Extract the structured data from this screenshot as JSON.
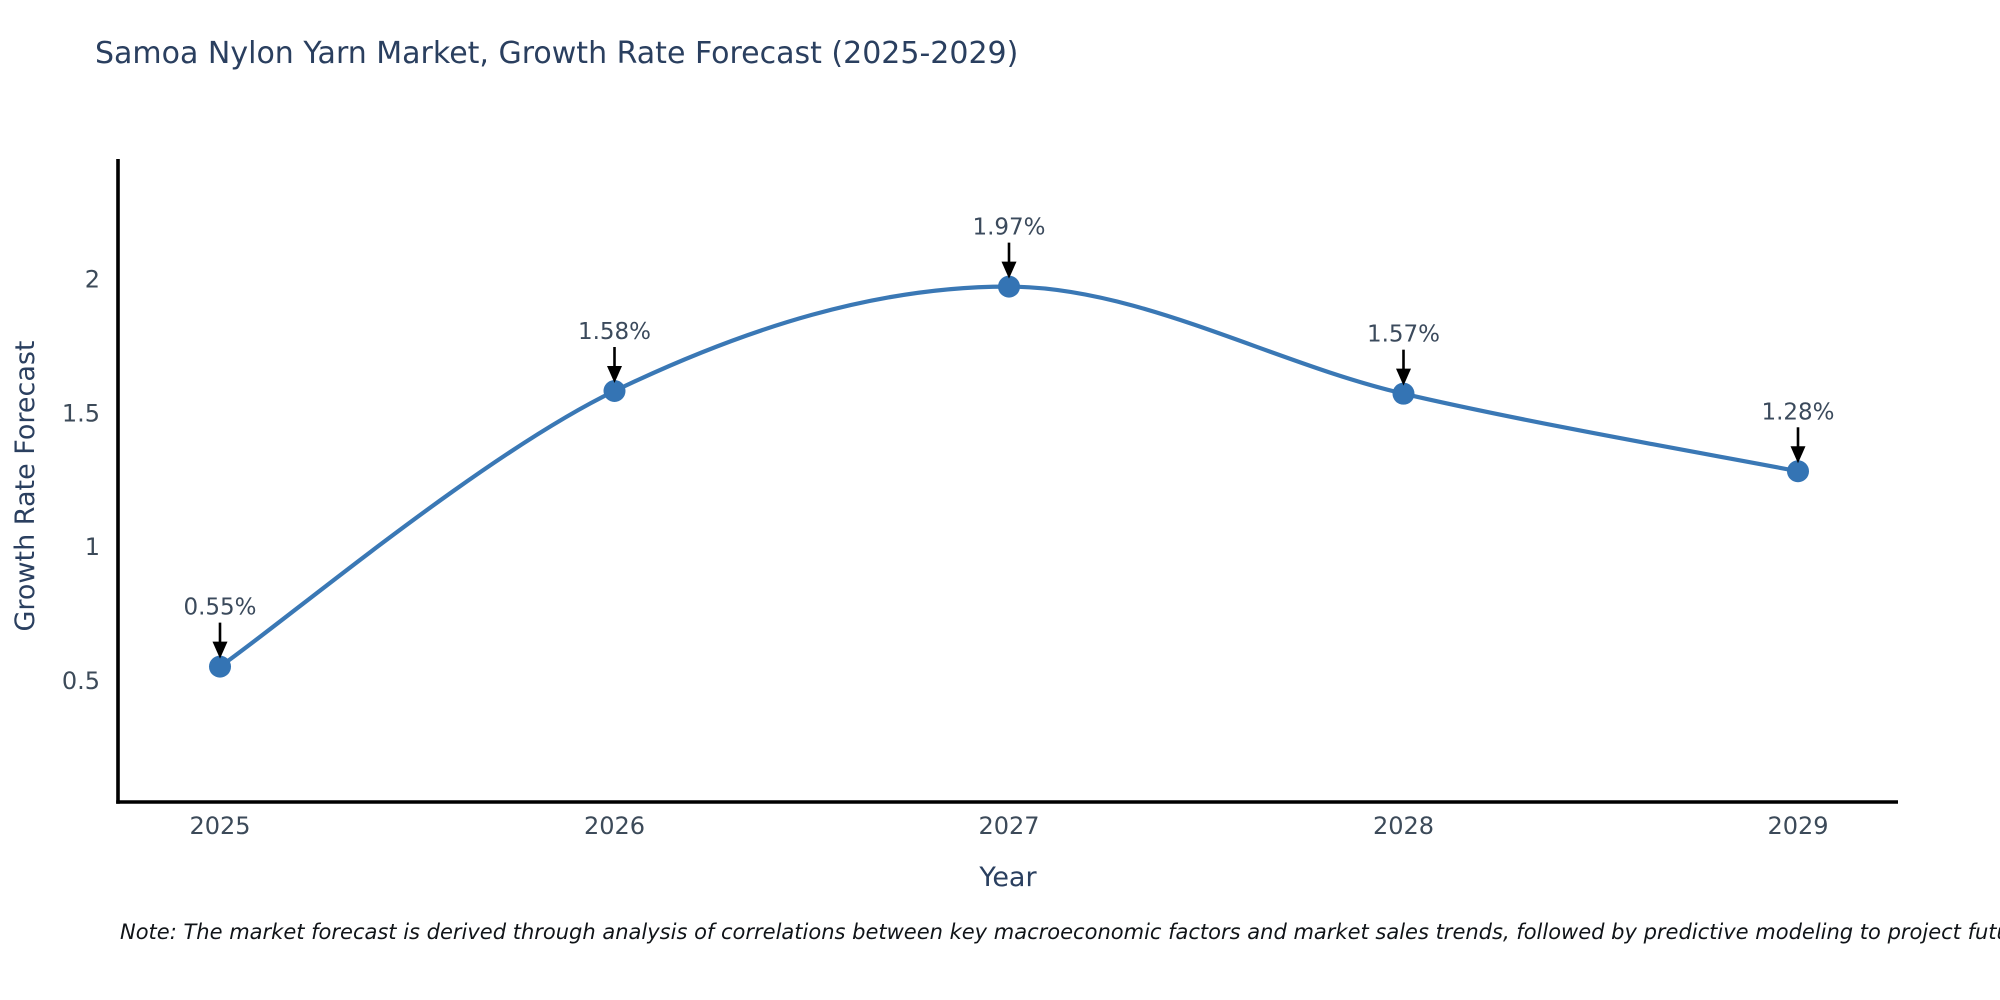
{
  "title": "Samoa Nylon Yarn Market, Growth Rate Forecast (2025-2029)",
  "note": "Note: The market forecast is derived through analysis of correlations between key macroeconomic factors and market sales trends, followed by predictive modeling to project future sales",
  "chart_data": {
    "type": "line",
    "line_shape": "spline",
    "title": "Samoa Nylon Yarn Market, Growth Rate Forecast (2025-2029)",
    "xlabel": "Year",
    "ylabel": "Growth Rate Forecast",
    "x": [
      2025,
      2026,
      2027,
      2028,
      2029
    ],
    "categories": [
      "2025",
      "2026",
      "2027",
      "2028",
      "2029"
    ],
    "series": [
      {
        "name": "Growth Rate Forecast",
        "values": [
          0.55,
          1.58,
          1.97,
          1.57,
          1.28
        ]
      }
    ],
    "point_labels": [
      "0.55%",
      "1.58%",
      "1.97%",
      "1.57%",
      "1.28%"
    ],
    "annotation_style": "black-arrow-down-to-point",
    "yticks": [
      0.5,
      1,
      1.5,
      2
    ],
    "ytick_labels": [
      "0.5",
      "1",
      "1.5",
      "2"
    ],
    "ylim": [
      0.05,
      2.45
    ],
    "grid": false,
    "legend_position": "none",
    "markers": true
  },
  "colors": {
    "background": "#ffffff",
    "line": "#3a78b5",
    "marker": "#3474b4",
    "title_text": "#2a3f5f",
    "axis_label_text": "#2a3f5f",
    "tick_text": "#3c4a59",
    "annotation_text": "#3b4a5c",
    "arrow": "#000000",
    "axis_line": "#000000",
    "note_text": "#101418"
  }
}
